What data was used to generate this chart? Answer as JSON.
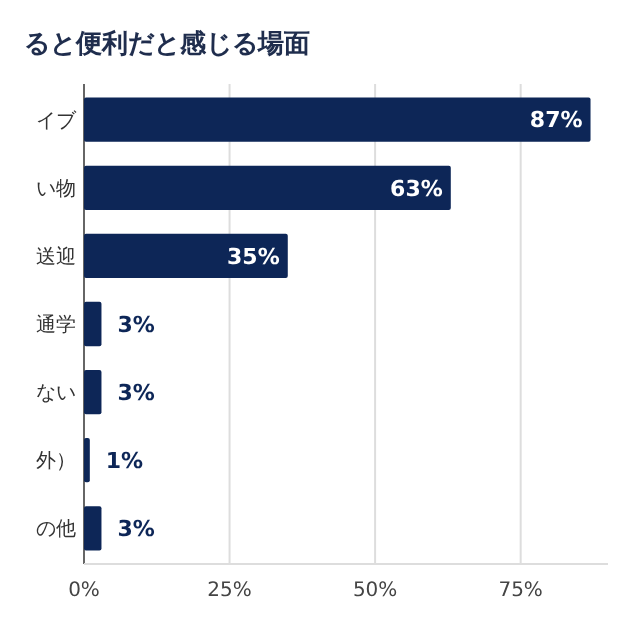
{
  "chart_data": {
    "type": "bar",
    "orientation": "horizontal",
    "title": "ると便利だと感じる場面",
    "categories": [
      "イブ",
      "い物",
      "送迎",
      "通学",
      "ない",
      "外）",
      "の他"
    ],
    "values": [
      87,
      63,
      35,
      3,
      3,
      1,
      3
    ],
    "color": "#0d2657",
    "xlim": [
      0,
      90
    ],
    "xticks": [
      {
        "value": 0,
        "label": "0%"
      },
      {
        "value": 25,
        "label": "25%"
      },
      {
        "value": 50,
        "label": "50%"
      },
      {
        "value": 75,
        "label": "75%"
      }
    ],
    "value_labels": [
      "87%",
      "63%",
      "35%",
      "3%",
      "3%",
      "1%",
      "3%"
    ],
    "grid": "x"
  }
}
